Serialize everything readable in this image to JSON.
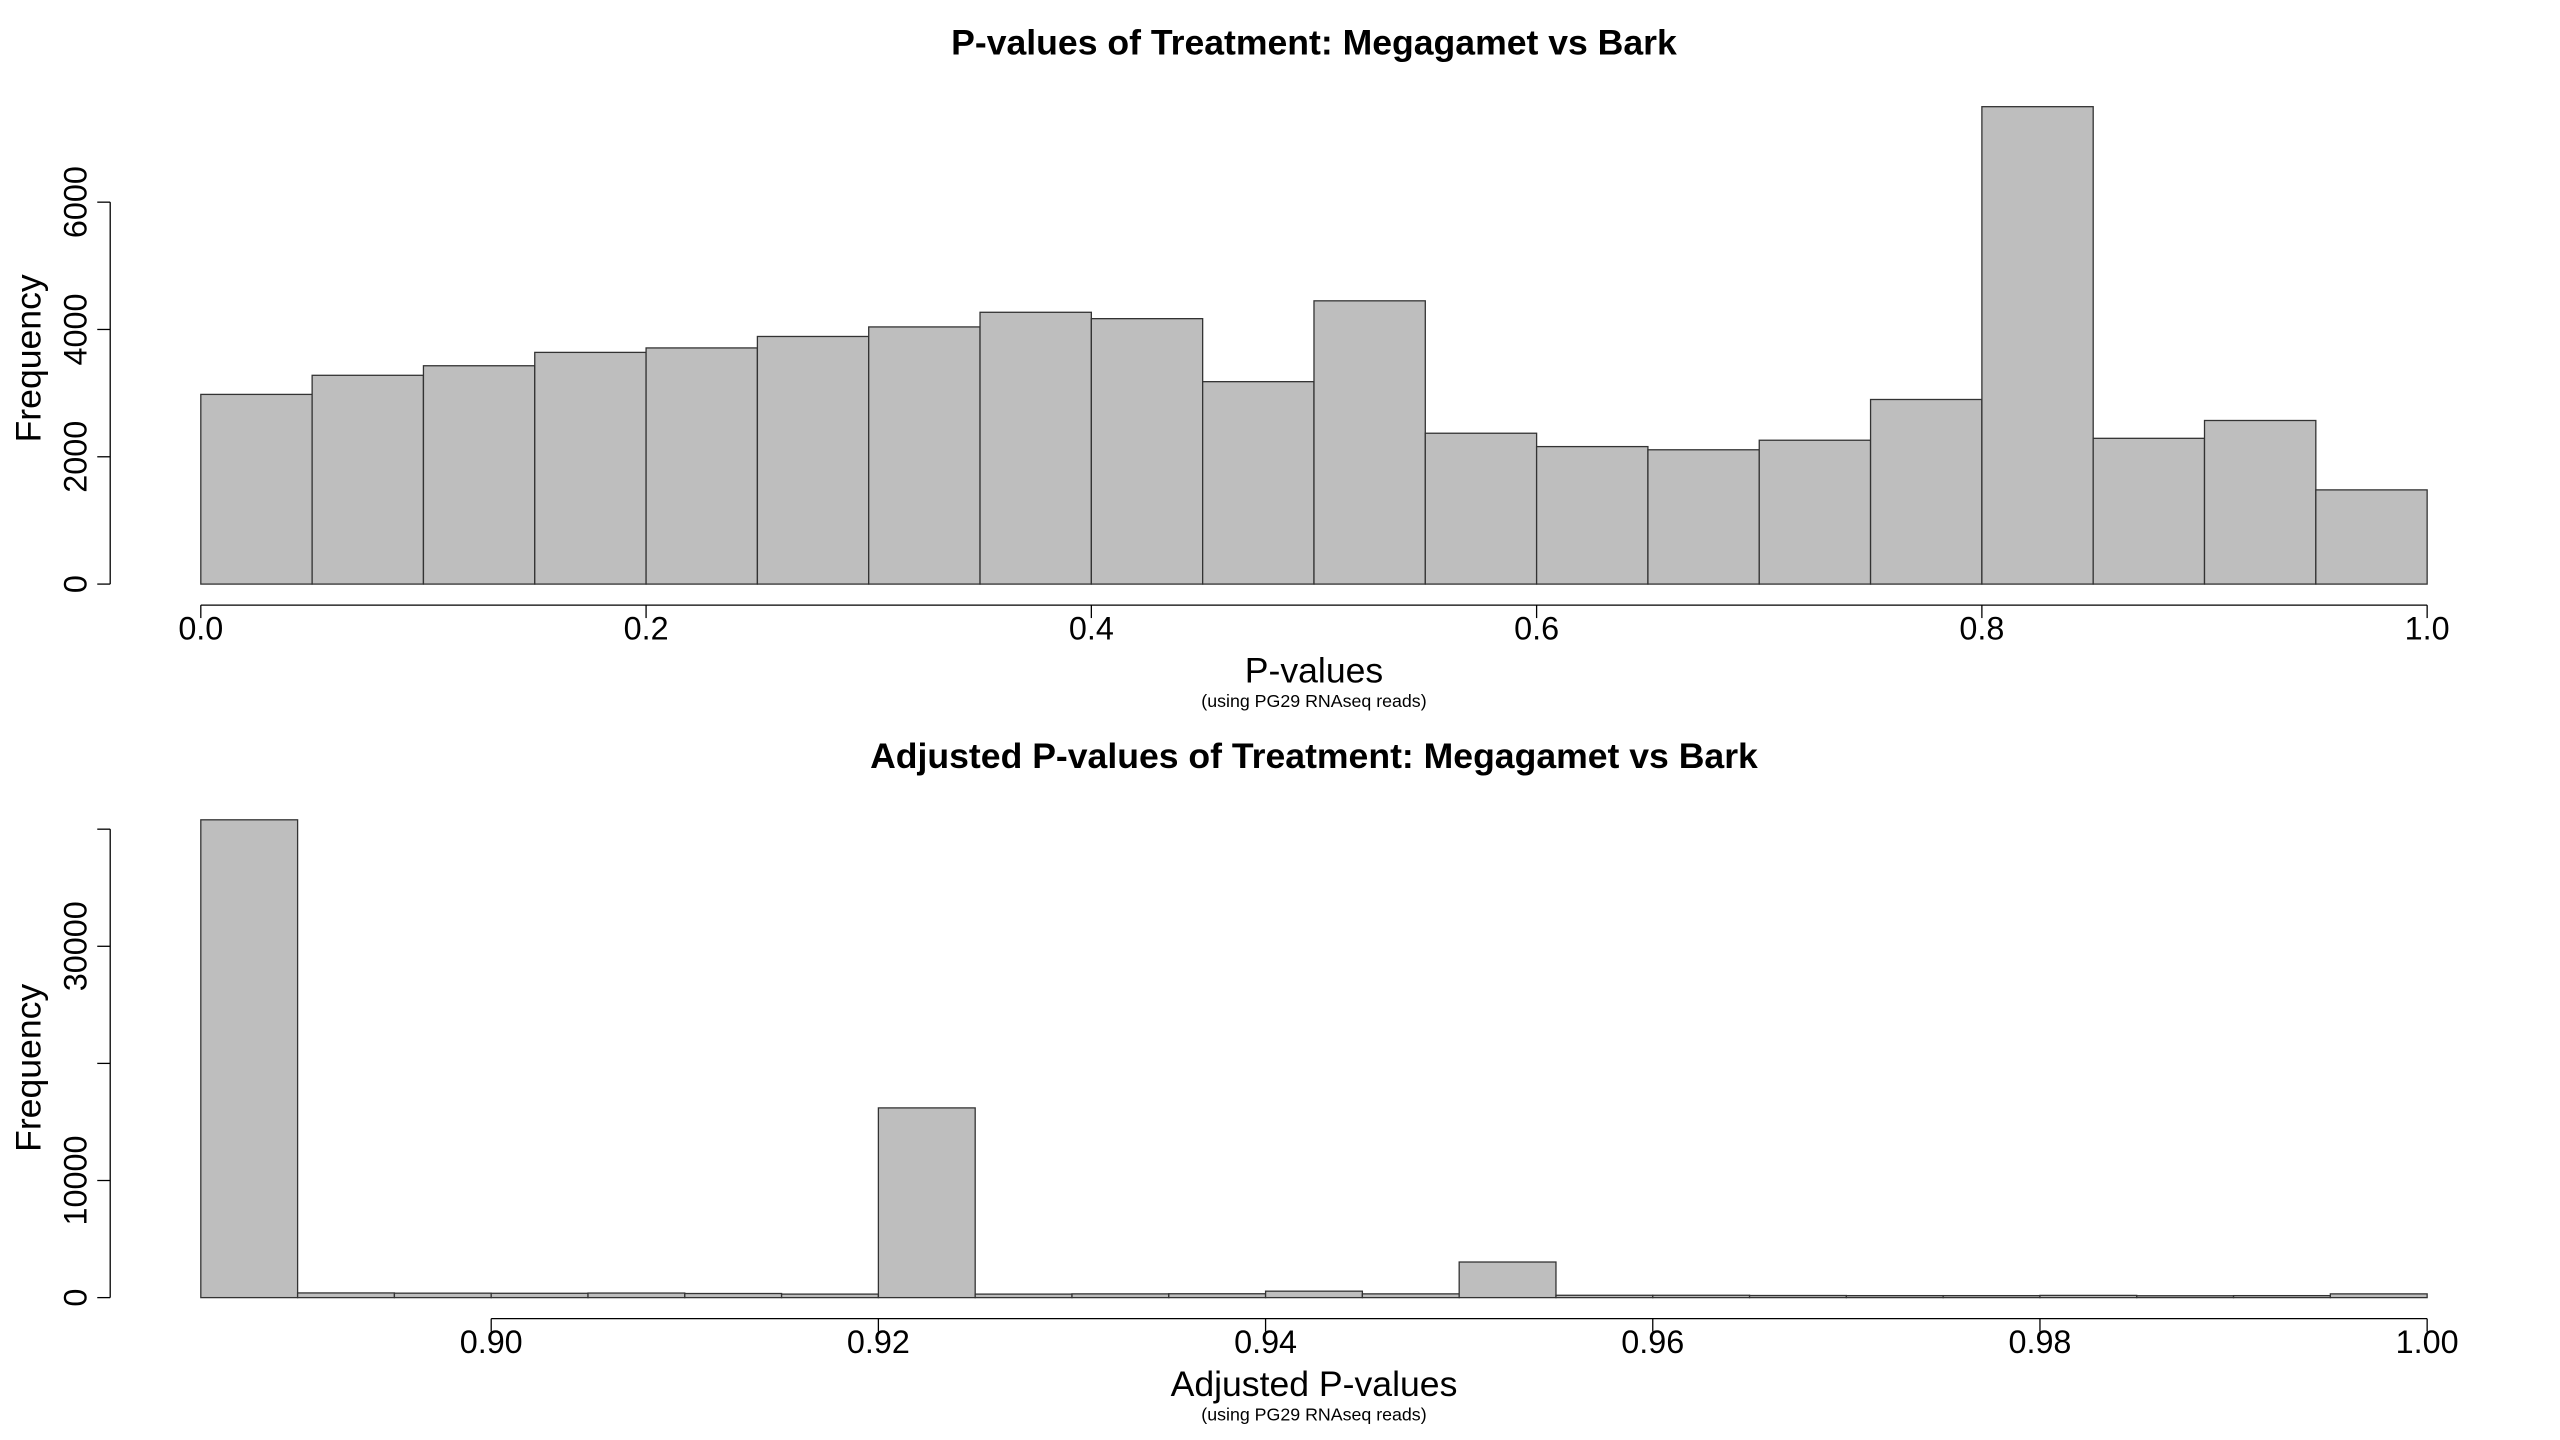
{
  "chart_data": [
    {
      "type": "histogram",
      "title": "P-values of Treatment: Megagamet vs Bark",
      "xlabel": "P-values",
      "subtitle": "(using PG29 RNAseq reads)",
      "ylabel": "Frequency",
      "bins": [
        0,
        0.05,
        0.1,
        0.15,
        0.2,
        0.25,
        0.3,
        0.35,
        0.4,
        0.45,
        0.5,
        0.55,
        0.6,
        0.65,
        0.7,
        0.75,
        0.8,
        0.85,
        0.9,
        0.95,
        1.0
      ],
      "values": [
        2980,
        3280,
        3430,
        3640,
        3710,
        3890,
        4040,
        4270,
        4170,
        3180,
        4450,
        2370,
        2160,
        2110,
        2260,
        2900,
        7500,
        2290,
        2570,
        1480
      ],
      "color": "#bebebe",
      "xlim": [
        0,
        1.0
      ],
      "xticks": [
        {
          "value": 0,
          "label": "0.0"
        },
        {
          "value": 0.2,
          "label": "0.2"
        },
        {
          "value": 0.4,
          "label": "0.4"
        },
        {
          "value": 0.6,
          "label": "0.6"
        },
        {
          "value": 0.8,
          "label": "0.8"
        },
        {
          "value": 1.0,
          "label": "1.0"
        }
      ],
      "ylim": [
        0,
        7600
      ],
      "yticks": [
        0,
        2000,
        4000,
        6000
      ]
    },
    {
      "type": "histogram",
      "title": "Adjusted P-values of Treatment: Megagamet vs Bark",
      "xlabel": "Adjusted P-values",
      "subtitle": "(using PG29 RNAseq reads)",
      "ylabel": "Frequency",
      "bins": [
        0.885,
        0.89,
        0.895,
        0.9,
        0.905,
        0.91,
        0.915,
        0.92,
        0.925,
        0.93,
        0.935,
        0.94,
        0.945,
        0.95,
        0.955,
        0.96,
        0.965,
        0.97,
        0.975,
        0.98,
        0.985,
        0.99,
        0.995,
        1.0
      ],
      "values": [
        40800,
        400,
        380,
        370,
        390,
        350,
        300,
        16200,
        300,
        320,
        330,
        550,
        320,
        3040,
        200,
        200,
        180,
        170,
        170,
        190,
        160,
        170,
        320
      ],
      "color": "#bebebe",
      "xlim": [
        0.885,
        1.0
      ],
      "xticks": [
        {
          "value": 0.9,
          "label": "0.90"
        },
        {
          "value": 0.92,
          "label": "0.92"
        },
        {
          "value": 0.94,
          "label": "0.94"
        },
        {
          "value": 0.96,
          "label": "0.96"
        },
        {
          "value": 0.98,
          "label": "0.98"
        },
        {
          "value": 1.0,
          "label": "1.00"
        }
      ],
      "ylim": [
        0,
        42000
      ],
      "yticks": [
        0,
        10000,
        30000
      ],
      "yticks_unlabeled": [
        20000,
        40000
      ]
    }
  ]
}
